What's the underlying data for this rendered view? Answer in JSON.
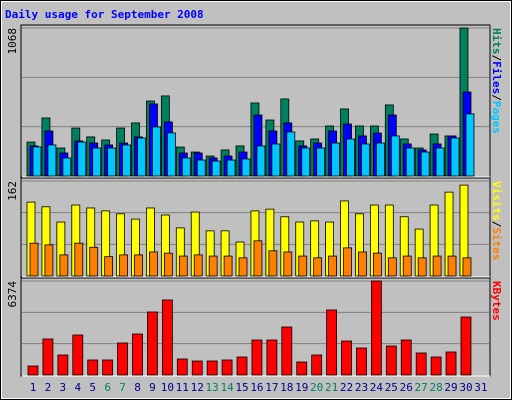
{
  "title": "Daily usage for September 2008",
  "chart_data": [
    {
      "type": "bar",
      "series": [
        {
          "name": "Hits",
          "color": "#00805c",
          "values": [
            245,
            419,
            202,
            346,
            282,
            260,
            346,
            383,
            541,
            578,
            209,
            173,
            144,
            188,
            217,
            527,
            404,
            556,
            253,
            267,
            361,
            484,
            361,
            361,
            513,
            267,
            202,
            303,
            289,
            1068,
            0
          ]
        },
        {
          "name": "Files",
          "color": "#0000ff",
          "values": [
            217,
            325,
            166,
            253,
            238,
            224,
            238,
            282,
            520,
            390,
            166,
            166,
            130,
            144,
            173,
            440,
            325,
            383,
            217,
            238,
            325,
            375,
            289,
            310,
            440,
            231,
            188,
            231,
            289,
            606,
            0
          ]
        },
        {
          "name": "Pages",
          "color": "#00c8ff",
          "values": [
            210,
            224,
            130,
            245,
            202,
            202,
            224,
            274,
            354,
            311,
            130,
            115,
            108,
            115,
            123,
            217,
            231,
            318,
            202,
            202,
            238,
            267,
            231,
            238,
            289,
            202,
            173,
            202,
            274,
            448,
            0
          ]
        }
      ],
      "legend_separator": "/",
      "ylim": [
        0,
        1068
      ],
      "yticks": [
        1068
      ],
      "grid": true
    },
    {
      "type": "bar",
      "series": [
        {
          "name": "Visits",
          "color": "#ffff00",
          "values": [
            126,
            118,
            92,
            121,
            116,
            111,
            106,
            97,
            116,
            104,
            82,
            109,
            77,
            77,
            58,
            111,
            114,
            101,
            92,
            94,
            92,
            128,
            106,
            121,
            121,
            101,
            80,
            121,
            143,
            155,
            0
          ]
        },
        {
          "name": "Sites",
          "color": "#ff8000",
          "values": [
            56,
            53,
            36,
            56,
            49,
            33,
            36,
            36,
            41,
            39,
            34,
            36,
            34,
            34,
            31,
            60,
            43,
            41,
            34,
            31,
            34,
            48,
            41,
            39,
            31,
            34,
            31,
            34,
            34,
            31,
            0
          ]
        }
      ],
      "legend_separator": "/",
      "ylim": [
        0,
        162
      ],
      "yticks": [
        162
      ],
      "grid": true
    },
    {
      "type": "bar",
      "series": [
        {
          "name": "KBytes",
          "color": "#ff0000",
          "values": [
            610,
            2441,
            1356,
            2712,
            1017,
            1017,
            2170,
            2780,
            4272,
            5086,
            1085,
            949,
            949,
            1017,
            1220,
            2373,
            2373,
            3255,
            881,
            1356,
            4408,
            2305,
            1831,
            6374,
            1966,
            2373,
            1492,
            1220,
            1560,
            3933,
            0
          ]
        }
      ],
      "categories": [
        "1",
        "2",
        "3",
        "4",
        "5",
        "6",
        "7",
        "8",
        "9",
        "10",
        "11",
        "12",
        "13",
        "14",
        "15",
        "16",
        "17",
        "18",
        "19",
        "20",
        "21",
        "22",
        "23",
        "24",
        "25",
        "26",
        "27",
        "28",
        "29",
        "30",
        "31"
      ],
      "category_colors": [
        "#00008b",
        "#00008b",
        "#00008b",
        "#00008b",
        "#00008b",
        "#00805c",
        "#00805c",
        "#00008b",
        "#00008b",
        "#00008b",
        "#00008b",
        "#00008b",
        "#00805c",
        "#00805c",
        "#00008b",
        "#00008b",
        "#00008b",
        "#00008b",
        "#00008b",
        "#00805c",
        "#00805c",
        "#00008b",
        "#00008b",
        "#00008b",
        "#00008b",
        "#00008b",
        "#00805c",
        "#00805c",
        "#00008b",
        "#00008b",
        "#00008b"
      ],
      "ylim": [
        0,
        6374
      ],
      "yticks": [
        6374
      ],
      "grid": true
    }
  ]
}
